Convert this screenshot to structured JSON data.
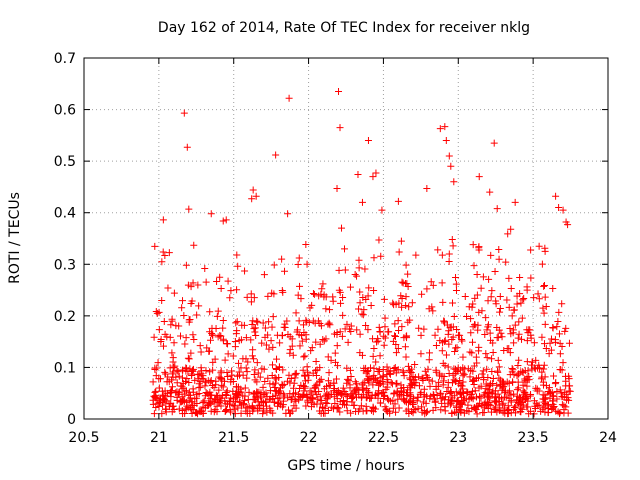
{
  "chart_data": {
    "type": "scatter",
    "title": "Day 162 of 2014, Rate Of TEC Index for receiver nklg",
    "xlabel": "GPS time / hours",
    "ylabel": "ROTI / TECUs",
    "xlim": [
      20.5,
      24
    ],
    "ylim": [
      0,
      0.7
    ],
    "grid": true,
    "marker": "+",
    "color": "#ff0000",
    "x_ticks": [
      "20.5",
      "21",
      "21.5",
      "22",
      "22.5",
      "23",
      "23.5",
      "24"
    ],
    "y_ticks": [
      "0",
      "0.1",
      "0.2",
      "0.3",
      "0.4",
      "0.5",
      "0.6",
      "0.7"
    ],
    "series": [
      {
        "name": "ROTI",
        "x": [
          21.17,
          21.19,
          21.2,
          21.03,
          21.02,
          21.04,
          21.35,
          21.43,
          21.45,
          21.63,
          21.65,
          21.62,
          21.78,
          21.87,
          21.86,
          21.82,
          21.99,
          22.2,
          22.21,
          22.19,
          22.22,
          22.24,
          22.33,
          22.36,
          22.4,
          22.43,
          22.45,
          22.49,
          22.47,
          22.6,
          22.62,
          22.79,
          22.88,
          22.91,
          22.92,
          22.94,
          22.95,
          22.97,
          22.96,
          22.94,
          23.14,
          23.24,
          23.26,
          23.21,
          23.33,
          23.35,
          23.38,
          23.65,
          23.67,
          23.7,
          23.73,
          23.72,
          23.54,
          23.58,
          23.46
        ],
        "y": [
          0.593,
          0.527,
          0.407,
          0.386,
          0.305,
          0.317,
          0.398,
          0.384,
          0.386,
          0.444,
          0.432,
          0.427,
          0.512,
          0.622,
          0.398,
          0.31,
          0.3,
          0.635,
          0.565,
          0.447,
          0.37,
          0.33,
          0.474,
          0.42,
          0.54,
          0.47,
          0.477,
          0.405,
          0.347,
          0.422,
          0.345,
          0.447,
          0.563,
          0.567,
          0.54,
          0.51,
          0.49,
          0.46,
          0.348,
          0.32,
          0.47,
          0.535,
          0.408,
          0.44,
          0.359,
          0.368,
          0.42,
          0.432,
          0.41,
          0.405,
          0.377,
          0.382,
          0.335,
          0.325,
          0.25
        ]
      }
    ]
  }
}
